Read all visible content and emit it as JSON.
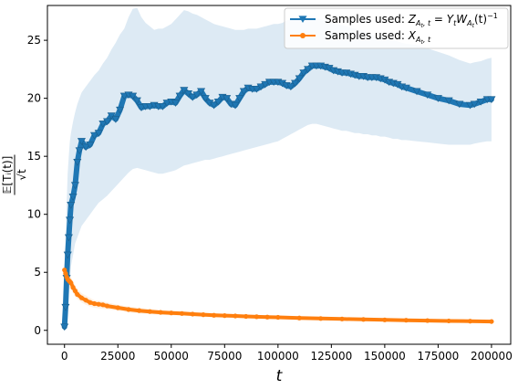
{
  "chart_data": {
    "type": "line",
    "xlabel": "t",
    "ylabel": {
      "numerator": "𝔼[Tᵢ(t)]",
      "denominator": "√t"
    },
    "xlim": [
      -8000,
      209000
    ],
    "ylim": [
      -1.2,
      28
    ],
    "xticks": [
      0,
      25000,
      50000,
      75000,
      100000,
      125000,
      150000,
      175000,
      200000
    ],
    "xtick_labels": [
      "0",
      "25000",
      "50000",
      "75000",
      "100000",
      "125000",
      "150000",
      "175000",
      "200000"
    ],
    "yticks": [
      0,
      5,
      10,
      15,
      20,
      25
    ],
    "ytick_labels": [
      "0",
      "5",
      "10",
      "15",
      "20",
      "25"
    ],
    "legend_position": "top-right",
    "series": [
      {
        "name": "Samples used: Z_{A_t,t} = Y_t W_{A_t}(t)^{-1}",
        "legend": {
          "prefix": "Samples used: ",
          "Z": "Z",
          "Z_sub": "A",
          "Z_subsub": "t",
          "Z_sub2": ", t",
          "eq": " = ",
          "Y": "Y",
          "Y_sub": "t",
          "W": "W",
          "W_sub": "A",
          "W_subsub": "t",
          "arg": "(t)",
          "sup": "−1"
        },
        "color": "#1f77b4",
        "band_color": "#c6dcec",
        "marker": "triangle-down",
        "x": [
          0,
          500,
          1000,
          1500,
          2000,
          2500,
          3000,
          4000,
          5000,
          6000,
          7000,
          8000,
          10000,
          12000,
          14000,
          16000,
          18000,
          20000,
          22000,
          24000,
          26000,
          28000,
          30000,
          32000,
          34000,
          36000,
          38000,
          40000,
          42000,
          44000,
          46000,
          48000,
          50000,
          52000,
          54000,
          56000,
          58000,
          60000,
          62000,
          64000,
          66000,
          68000,
          70000,
          72000,
          74000,
          76000,
          78000,
          80000,
          82000,
          84000,
          86000,
          88000,
          90000,
          92000,
          94000,
          96000,
          98000,
          100000,
          102000,
          104000,
          106000,
          108000,
          110000,
          112000,
          114000,
          116000,
          118000,
          120000,
          122000,
          124000,
          126000,
          128000,
          130000,
          132000,
          134000,
          136000,
          138000,
          140000,
          142000,
          144000,
          146000,
          148000,
          150000,
          152000,
          154000,
          156000,
          158000,
          160000,
          165000,
          170000,
          175000,
          180000,
          185000,
          190000,
          192000,
          195000,
          198000,
          200000
        ],
        "y": [
          0.3,
          2.0,
          4.5,
          6.5,
          8.0,
          9.5,
          10.8,
          11.5,
          12.5,
          14.5,
          15.5,
          16.3,
          15.8,
          16.0,
          16.8,
          17.0,
          17.8,
          18.0,
          18.5,
          18.2,
          19.0,
          20.2,
          20.3,
          20.2,
          19.8,
          19.2,
          19.3,
          19.3,
          19.4,
          19.3,
          19.3,
          19.6,
          19.7,
          19.6,
          20.2,
          20.7,
          20.4,
          20.1,
          20.3,
          20.6,
          20.0,
          19.6,
          19.4,
          19.7,
          20.1,
          20.0,
          19.5,
          19.4,
          20.0,
          20.6,
          20.9,
          20.8,
          20.8,
          21.0,
          21.2,
          21.4,
          21.4,
          21.4,
          21.3,
          21.1,
          21.0,
          21.3,
          21.7,
          22.2,
          22.5,
          22.8,
          22.8,
          22.8,
          22.7,
          22.6,
          22.4,
          22.3,
          22.2,
          22.2,
          22.1,
          22.0,
          21.9,
          21.9,
          21.8,
          21.8,
          21.8,
          21.7,
          21.6,
          21.4,
          21.3,
          21.2,
          21.0,
          20.9,
          20.6,
          20.3,
          20.0,
          19.8,
          19.5,
          19.4,
          19.5,
          19.7,
          19.9,
          19.9
        ],
        "band_upper": [
          5.0,
          8.0,
          11.0,
          13.5,
          15.0,
          16.3,
          17.0,
          18.0,
          18.8,
          19.5,
          20.0,
          20.5,
          21.0,
          21.5,
          22.0,
          22.4,
          23.0,
          23.5,
          24.2,
          24.8,
          25.5,
          26.0,
          27.0,
          27.7,
          27.8,
          27.0,
          26.5,
          26.2,
          25.9,
          26.0,
          26.0,
          26.2,
          26.4,
          26.8,
          27.2,
          27.6,
          27.5,
          27.3,
          27.2,
          27.0,
          26.8,
          26.6,
          26.4,
          26.3,
          26.2,
          26.1,
          26.0,
          25.9,
          25.9,
          25.9,
          26.0,
          26.0,
          26.0,
          26.1,
          26.2,
          26.3,
          26.4,
          26.4,
          26.5,
          26.7,
          26.8,
          26.9,
          27.0,
          27.1,
          27.1,
          27.0,
          26.9,
          26.8,
          26.7,
          26.6,
          26.5,
          26.4,
          26.3,
          26.2,
          26.1,
          26.0,
          25.9,
          25.8,
          25.6,
          25.5,
          25.4,
          25.3,
          25.2,
          25.1,
          25.0,
          24.9,
          24.8,
          24.7,
          24.6,
          24.3,
          24.0,
          23.7,
          23.3,
          23.0,
          23.1,
          23.2,
          23.4,
          23.5
        ],
        "band_lower": [
          0.0,
          0.0,
          1.0,
          2.0,
          3.0,
          4.0,
          5.5,
          6.5,
          7.5,
          8.0,
          8.5,
          9.0,
          9.5,
          10.0,
          10.5,
          11.0,
          11.3,
          11.6,
          12.0,
          12.4,
          12.8,
          13.2,
          13.6,
          13.9,
          14.0,
          13.9,
          13.8,
          13.7,
          13.6,
          13.5,
          13.5,
          13.6,
          13.7,
          13.8,
          14.0,
          14.2,
          14.3,
          14.4,
          14.5,
          14.6,
          14.7,
          14.7,
          14.8,
          14.9,
          15.0,
          15.1,
          15.2,
          15.3,
          15.4,
          15.5,
          15.6,
          15.7,
          15.8,
          15.9,
          16.0,
          16.1,
          16.2,
          16.3,
          16.5,
          16.7,
          16.9,
          17.1,
          17.3,
          17.5,
          17.7,
          17.8,
          17.8,
          17.7,
          17.6,
          17.5,
          17.4,
          17.3,
          17.2,
          17.2,
          17.1,
          17.0,
          17.0,
          16.9,
          16.9,
          16.8,
          16.8,
          16.7,
          16.7,
          16.6,
          16.5,
          16.5,
          16.4,
          16.4,
          16.3,
          16.2,
          16.1,
          16.0,
          16.0,
          16.0,
          16.1,
          16.2,
          16.3,
          16.3
        ]
      },
      {
        "name": "Samples used: X_{A_t,t}",
        "legend": {
          "prefix": "Samples used: ",
          "X": "X",
          "X_sub": "A",
          "X_subsub": "t",
          "X_sub2": ", t"
        },
        "color": "#ff7f0e",
        "band_color": "#fde8d2",
        "marker": "circle",
        "x": [
          0,
          500,
          1000,
          1500,
          2000,
          2500,
          3000,
          4000,
          5000,
          6000,
          8000,
          10000,
          12000,
          14000,
          16000,
          18000,
          20000,
          25000,
          30000,
          35000,
          40000,
          45000,
          50000,
          55000,
          60000,
          65000,
          70000,
          75000,
          80000,
          85000,
          90000,
          95000,
          100000,
          110000,
          120000,
          130000,
          140000,
          150000,
          160000,
          170000,
          180000,
          190000,
          200000
        ],
        "y": [
          5.2,
          4.9,
          4.6,
          4.4,
          4.3,
          4.2,
          4.1,
          3.7,
          3.4,
          3.1,
          2.8,
          2.6,
          2.4,
          2.3,
          2.25,
          2.2,
          2.1,
          1.95,
          1.8,
          1.7,
          1.62,
          1.55,
          1.5,
          1.45,
          1.4,
          1.35,
          1.3,
          1.27,
          1.24,
          1.2,
          1.17,
          1.14,
          1.12,
          1.06,
          1.02,
          0.98,
          0.94,
          0.9,
          0.87,
          0.84,
          0.81,
          0.79,
          0.76
        ],
        "band_upper": [
          5.8,
          5.5,
          5.2,
          5.0,
          4.9,
          4.8,
          4.6,
          4.2,
          3.9,
          3.6,
          3.2,
          3.0,
          2.8,
          2.6,
          2.55,
          2.5,
          2.4,
          2.2,
          2.05,
          1.95,
          1.85,
          1.77,
          1.7,
          1.64,
          1.58,
          1.53,
          1.48,
          1.44,
          1.4,
          1.36,
          1.32,
          1.29,
          1.26,
          1.2,
          1.15,
          1.1,
          1.06,
          1.02,
          0.98,
          0.95,
          0.92,
          0.89,
          0.86
        ],
        "band_lower": [
          4.5,
          4.3,
          4.0,
          3.8,
          3.7,
          3.6,
          3.5,
          3.2,
          2.9,
          2.7,
          2.4,
          2.2,
          2.05,
          1.95,
          1.9,
          1.85,
          1.8,
          1.7,
          1.55,
          1.45,
          1.4,
          1.33,
          1.3,
          1.26,
          1.22,
          1.17,
          1.12,
          1.1,
          1.08,
          1.04,
          1.02,
          0.99,
          0.98,
          0.92,
          0.89,
          0.86,
          0.82,
          0.78,
          0.76,
          0.73,
          0.7,
          0.69,
          0.66
        ]
      }
    ]
  }
}
